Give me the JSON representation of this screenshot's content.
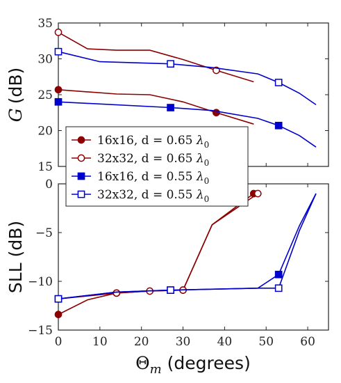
{
  "chart_data": [
    {
      "type": "line",
      "panel": "top",
      "xlabel": "",
      "ylabel": "G (dB)",
      "ylabel_parts": {
        "symbol": "G",
        "unit": "(dB)"
      },
      "xlim": [
        0,
        65
      ],
      "ylim": [
        15,
        35
      ],
      "xticks": [
        0,
        10,
        20,
        30,
        40,
        50,
        60
      ],
      "yticks": [
        15,
        20,
        25,
        30,
        35
      ],
      "grid": false,
      "series": [
        {
          "name": "16x16, d = 0.65 λ0",
          "color": "#8b0000",
          "marker": "filled-circle",
          "x": [
            0,
            7,
            14,
            22,
            30,
            38,
            47
          ],
          "y": [
            25.7,
            25.4,
            25.1,
            25.0,
            24.0,
            22.5,
            20.9
          ],
          "marker_x": [
            0,
            38
          ]
        },
        {
          "name": "32x32, d = 0.65 λ0",
          "color": "#8b0000",
          "marker": "open-circle",
          "x": [
            0,
            7,
            14,
            22,
            30,
            38,
            47
          ],
          "y": [
            33.7,
            31.4,
            31.2,
            31.2,
            29.9,
            28.4,
            26.8
          ],
          "marker_x": [
            0,
            38
          ]
        },
        {
          "name": "16x16, d = 0.55 λ0",
          "color": "#0000cc",
          "marker": "filled-square",
          "x": [
            0,
            27,
            37,
            48,
            53,
            58,
            62
          ],
          "y": [
            24.0,
            23.2,
            22.8,
            21.7,
            20.7,
            19.3,
            17.7
          ],
          "marker_x": [
            0,
            27,
            53
          ]
        },
        {
          "name": "32x32, d = 0.55 λ0",
          "color": "#0000cc",
          "marker": "open-square",
          "x": [
            0,
            10,
            27,
            37,
            48,
            53,
            58,
            62
          ],
          "y": [
            31.0,
            29.6,
            29.3,
            28.8,
            27.9,
            26.7,
            25.2,
            23.6
          ],
          "marker_x": [
            0,
            27,
            53
          ]
        }
      ],
      "legend": {
        "placement": "lower-left",
        "entries": [
          {
            "prefix": "16x16, d = 0.65 ",
            "symbol": "λ",
            "sub": "0"
          },
          {
            "prefix": "32x32, d = 0.65 ",
            "symbol": "λ",
            "sub": "0"
          },
          {
            "prefix": "16x16, d = 0.55 ",
            "symbol": "λ",
            "sub": "0"
          },
          {
            "prefix": "32x32, d = 0.55 ",
            "symbol": "λ",
            "sub": "0"
          }
        ]
      }
    },
    {
      "type": "line",
      "panel": "bottom",
      "xlabel": "Θm (degrees)",
      "xlabel_parts": {
        "symbol": "Θ",
        "sub": "m",
        "unit": " (degrees)"
      },
      "ylabel": "SLL (dB)",
      "xlim": [
        0,
        65
      ],
      "ylim": [
        -15,
        0
      ],
      "xticks": [
        0,
        10,
        20,
        30,
        40,
        50,
        60
      ],
      "yticks": [
        -15,
        -10,
        -5,
        0
      ],
      "ytick_labels": [
        "−15",
        "−10",
        "−5",
        "0"
      ],
      "grid": false,
      "series": [
        {
          "name": "16x16, d = 0.65 λ0",
          "color": "#8b0000",
          "marker": "filled-circle",
          "x": [
            0,
            7,
            14,
            22,
            30,
            37,
            47
          ],
          "y": [
            -13.4,
            -11.9,
            -11.2,
            -11.0,
            -10.9,
            -4.2,
            -1.0
          ],
          "marker_x": [
            0,
            14,
            30,
            47
          ]
        },
        {
          "name": "32x32, d = 0.65 λ0",
          "color": "#8b0000",
          "marker": "open-circle",
          "x": [
            0,
            14,
            22,
            30,
            37,
            48
          ],
          "y": [
            -11.8,
            -11.2,
            -11.0,
            -10.9,
            -4.2,
            -1.0
          ],
          "marker_x": [
            14,
            22,
            30,
            48
          ]
        },
        {
          "name": "16x16, d = 0.55 λ0",
          "color": "#0000cc",
          "marker": "filled-square",
          "x": [
            0,
            14,
            27,
            48,
            53,
            58,
            62
          ],
          "y": [
            -11.8,
            -11.1,
            -10.9,
            -10.7,
            -9.3,
            -4.3,
            -1.0
          ],
          "marker_x": [
            0,
            27,
            53
          ]
        },
        {
          "name": "32x32, d = 0.55 λ0",
          "color": "#0000cc",
          "marker": "open-square",
          "x": [
            0,
            14,
            27,
            48,
            53,
            58,
            62
          ],
          "y": [
            -11.8,
            -11.1,
            -10.9,
            -10.7,
            -10.7,
            -4.8,
            -1.0
          ],
          "marker_x": [
            0,
            27,
            53
          ]
        }
      ]
    }
  ]
}
